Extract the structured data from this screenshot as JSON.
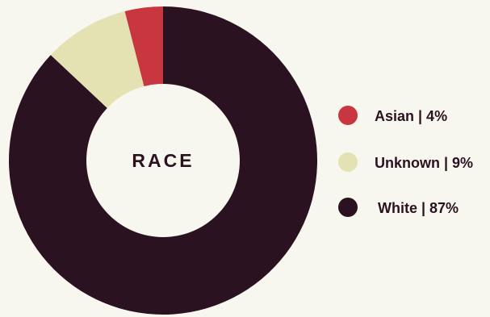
{
  "chart_data": {
    "type": "pie",
    "title": "RACE",
    "categories": [
      "Asian",
      "Unknown",
      "White"
    ],
    "values": [
      4,
      9,
      87
    ],
    "labels": [
      "Asian | 4%",
      "Unknown | 9%",
      "White | 87%"
    ],
    "colors": [
      "#c8373f",
      "#e4e2b2",
      "#2b1220"
    ],
    "donut": true,
    "legend_position": "right"
  }
}
